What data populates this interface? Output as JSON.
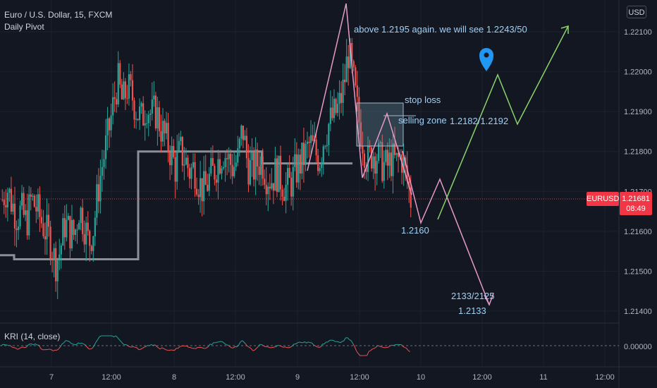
{
  "header": {
    "symbol_line": "Euro / U.S. Dollar, 15, FXCM",
    "indicator": "Daily Pivot"
  },
  "currency_button": "USD",
  "last_price": {
    "symbol": "EURUSD",
    "price": "1.21681",
    "countdown": "08:49"
  },
  "kri_label": "KRI (14, close)",
  "colors": {
    "background": "#131722",
    "bull": "#26a69a",
    "bear": "#ef5350",
    "pivot": "#8c8f96",
    "pink": "#e69ac9",
    "green": "#8bd36b",
    "marker": "#2196f3",
    "annotation": "#9fd0f5"
  },
  "chart_data": {
    "type": "candlestick",
    "symbol": "EURUSD",
    "interval": "15",
    "y_axis": {
      "min": 1.2135,
      "max": 1.2217,
      "ticks": [
        "1.21400",
        "1.21500",
        "1.21600",
        "1.21700",
        "1.21800",
        "1.21900",
        "1.22000",
        "1.22100"
      ]
    },
    "x_axis": {
      "tick_labels": [
        "7",
        "12:00",
        "8",
        "12:00",
        "9",
        "12:00",
        "10",
        "12:00",
        "11",
        "12:00"
      ],
      "tick_x": [
        73,
        158,
        247,
        334,
        422,
        510,
        597,
        684,
        771,
        858
      ]
    },
    "closes": [
      1.2168,
      1.2171,
      1.2167,
      1.2164,
      1.2165,
      1.2162,
      1.2168,
      1.2166,
      1.2163,
      1.216,
      1.2158,
      1.2152,
      1.2155,
      1.2162,
      1.216,
      1.2159,
      1.2166,
      1.2162,
      1.2157,
      1.2161,
      1.2171,
      1.2178,
      1.2184,
      1.2191,
      1.2198,
      1.2192,
      1.2196,
      1.2194,
      1.219,
      1.2188,
      1.2192,
      1.2189,
      1.219,
      1.2186,
      1.2183,
      1.218,
      1.2176,
      1.218,
      1.2178,
      1.2175,
      1.2176,
      1.2172,
      1.217,
      1.2173,
      1.2175,
      1.2178,
      1.218,
      1.2178,
      1.2176,
      1.2178,
      1.2186,
      1.2177,
      1.2175,
      1.2177,
      1.2178,
      1.2174,
      1.2173,
      1.2175,
      1.2173,
      1.2171,
      1.2172,
      1.2175,
      1.2177,
      1.2179,
      1.2182,
      1.218,
      1.2178,
      1.2184,
      1.2187,
      1.2189,
      1.2191,
      1.2196,
      1.2205,
      1.2198,
      1.2189,
      1.2183,
      1.2177,
      1.218,
      1.2179,
      1.2177,
      1.2176,
      1.2178,
      1.2177,
      1.2179,
      1.2174,
      1.2168
    ],
    "pivot_levels": [
      {
        "from_day": "6",
        "value": 1.2153
      },
      {
        "from_day": "8",
        "value": 1.218
      },
      {
        "from_day": "9",
        "value": 1.2177
      }
    ],
    "last_price": 1.21681,
    "annotations": [
      {
        "text": "above 1.2195 again. we will see 1.2243/50"
      },
      {
        "text": "stop loss"
      },
      {
        "text": "selling zone"
      },
      {
        "text": "1.2182/1.2192"
      },
      {
        "text": "1.2160"
      },
      {
        "text": "2133/2125"
      },
      {
        "text": "1.2133"
      }
    ],
    "indicator_panel": {
      "name": "KRI",
      "params": "14, close",
      "tick": "0.00000"
    }
  }
}
